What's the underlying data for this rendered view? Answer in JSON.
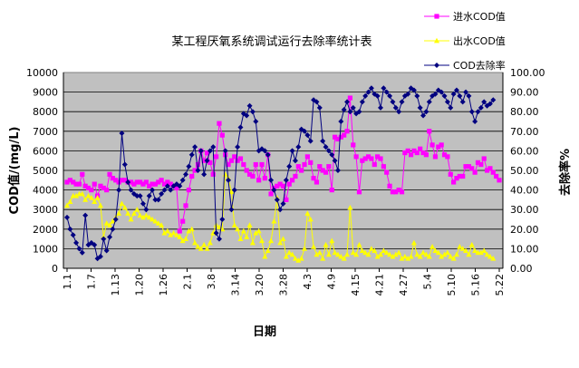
{
  "chart_data": {
    "type": "line",
    "title": "某工程厌氧系统调试运行去除率统计表",
    "xlabel": "日期",
    "ylabel_left": "COD值/(mg/L)",
    "ylabel_right": "去除率%",
    "y_left_range": [
      0,
      10000
    ],
    "y_left_ticks": [
      "0",
      "1000",
      "2000",
      "3000",
      "4000",
      "5000",
      "6000",
      "7000",
      "8000",
      "9000",
      "10000"
    ],
    "y_right_range": [
      0,
      100
    ],
    "y_right_ticks": [
      "0.00",
      "10.00",
      "20.00",
      "30.00",
      "40.00",
      "50.00",
      "60.00",
      "70.00",
      "80.00",
      "90.00",
      "100.00"
    ],
    "x_tick_labels": [
      "1.1",
      "1.7",
      "1.13",
      "1.20",
      "1.26",
      "2.1",
      "3.8",
      "3.14",
      "3.20",
      "3.28",
      "4.3",
      "4.9",
      "4.15",
      "4.21",
      "4.27",
      "5.4",
      "5.10",
      "5.16",
      "5.22"
    ],
    "grid": true,
    "legend_position": "top-right",
    "colors": {
      "inflow": "#ff00ff",
      "outflow": "#ffff00",
      "removal": "#000080",
      "plot_bg": "#c0c0c0"
    },
    "series": [
      {
        "name": "进水COD值",
        "axis": "left",
        "marker": "square",
        "values": [
          4400,
          4500,
          4400,
          4300,
          4300,
          4800,
          4200,
          4100,
          4000,
          4300,
          3700,
          4200,
          4100,
          4000,
          4800,
          4600,
          4500,
          4400,
          4500,
          4500,
          4400,
          4400,
          4300,
          4400,
          4400,
          4300,
          4400,
          4200,
          4300,
          4300,
          4400,
          4500,
          4300,
          4400,
          4300,
          4200,
          4100,
          1900,
          2400,
          3200,
          4000,
          4700,
          5000,
          5300,
          6000,
          5500,
          5900,
          5400,
          4800,
          5700,
          7400,
          6800,
          5800,
          5300,
          5500,
          5700,
          5500,
          5600,
          5300,
          5000,
          4800,
          4700,
          5300,
          4500,
          5300,
          4600,
          5800,
          3800,
          4100,
          4200,
          4300,
          4200,
          3500,
          4300,
          4500,
          4700,
          5200,
          5000,
          5300,
          5700,
          5400,
          4600,
          4400,
          5200,
          5000,
          4900,
          5200,
          4000,
          6700,
          6600,
          6700,
          6800,
          7000,
          8700,
          6300,
          5700,
          3900,
          5500,
          5600,
          5700,
          5600,
          5300,
          5700,
          5600,
          5200,
          4900,
          4200,
          3900,
          3900,
          4000,
          3900,
          5900,
          6000,
          5800,
          6000,
          5900,
          6100,
          5900,
          5800,
          7000,
          6300,
          5700,
          6200,
          6300,
          5800,
          5700,
          4800,
          4400,
          4600,
          4700,
          4700,
          5200,
          5200,
          5100,
          4900,
          5400,
          5300,
          5600,
          5000,
          5100,
          4900,
          4700,
          4500
        ]
      },
      {
        "name": "出水COD值",
        "axis": "left",
        "marker": "triangle",
        "values": [
          3200,
          3400,
          3700,
          3700,
          3800,
          3800,
          3500,
          3700,
          3600,
          3400,
          3600,
          3200,
          1600,
          2300,
          2200,
          2400,
          2600,
          2800,
          3300,
          3100,
          2800,
          2500,
          2800,
          3000,
          2700,
          2600,
          2700,
          2600,
          2500,
          2400,
          2300,
          2200,
          1800,
          1900,
          1700,
          1800,
          1700,
          1600,
          1400,
          1500,
          1900,
          2000,
          1300,
          1100,
          1000,
          1200,
          1000,
          1300,
          1800,
          2200,
          2100,
          2000,
          4800,
          4600,
          3900,
          2200,
          2000,
          1500,
          1900,
          1600,
          2200,
          1300,
          1800,
          1900,
          1400,
          600,
          900,
          1400,
          2400,
          3600,
          1300,
          1500,
          600,
          800,
          700,
          500,
          400,
          500,
          1000,
          2800,
          2500,
          1100,
          700,
          800,
          500,
          1200,
          700,
          1400,
          800,
          700,
          600,
          500,
          700,
          3100,
          800,
          700,
          1200,
          900,
          800,
          700,
          1000,
          900,
          600,
          700,
          900,
          800,
          700,
          600,
          700,
          800,
          500,
          600,
          500,
          600,
          1300,
          700,
          600,
          800,
          700,
          600,
          1100,
          900,
          800,
          600,
          700,
          800,
          600,
          500,
          700,
          1100,
          1000,
          900,
          700,
          1200,
          900,
          800,
          800,
          900,
          700,
          600,
          500
        ]
      },
      {
        "name": "COD去除率",
        "axis": "right",
        "marker": "diamond",
        "values": [
          26,
          20,
          17,
          13,
          10,
          8,
          27,
          12,
          13,
          12,
          5,
          6,
          15,
          9,
          16,
          20,
          25,
          40,
          69,
          53,
          44,
          40,
          38,
          37,
          37,
          33,
          30,
          37,
          40,
          35,
          35,
          38,
          40,
          42,
          40,
          42,
          43,
          42,
          45,
          48,
          52,
          58,
          62,
          50,
          60,
          48,
          55,
          60,
          62,
          18,
          15,
          25,
          60,
          45,
          30,
          40,
          62,
          72,
          79,
          78,
          83,
          80,
          75,
          60,
          61,
          60,
          58,
          45,
          40,
          35,
          30,
          33,
          45,
          52,
          60,
          55,
          62,
          71,
          70,
          68,
          65,
          86,
          85,
          82,
          65,
          62,
          60,
          58,
          55,
          50,
          75,
          81,
          85,
          80,
          82,
          79,
          80,
          85,
          88,
          90,
          92,
          89,
          88,
          82,
          92,
          90,
          88,
          85,
          82,
          80,
          85,
          88,
          89,
          92,
          91,
          88,
          82,
          78,
          80,
          85,
          88,
          89,
          91,
          90,
          88,
          85,
          82,
          89,
          91,
          88,
          85,
          90,
          88,
          80,
          75,
          80,
          82,
          85,
          83,
          84,
          86
        ]
      }
    ]
  }
}
